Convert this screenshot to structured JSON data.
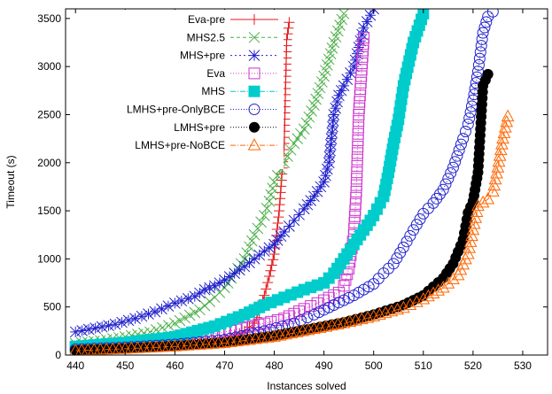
{
  "chart_data": {
    "type": "line",
    "title": "",
    "xlabel": "Instances solved",
    "ylabel": "Timeout (s)",
    "xlim": [
      438,
      535
    ],
    "ylim": [
      0,
      3600
    ],
    "xticks": [
      440,
      450,
      460,
      470,
      480,
      490,
      500,
      510,
      520,
      530
    ],
    "yticks": [
      0,
      500,
      1000,
      1500,
      2000,
      2500,
      3000,
      3500
    ],
    "legend_position": "top-left",
    "grid": false,
    "series": [
      {
        "name": "Eva-pre",
        "color": "#e41a1c",
        "marker": "plus",
        "dash": "",
        "points": [
          [
            440,
            40
          ],
          [
            444,
            55
          ],
          [
            448,
            70
          ],
          [
            452,
            80
          ],
          [
            456,
            95
          ],
          [
            460,
            110
          ],
          [
            464,
            130
          ],
          [
            468,
            150
          ],
          [
            470,
            170
          ],
          [
            472,
            200
          ],
          [
            474,
            250
          ],
          [
            476,
            330
          ],
          [
            477,
            450
          ],
          [
            478,
            620
          ],
          [
            479,
            820
          ],
          [
            480,
            1050
          ],
          [
            481,
            1500
          ],
          [
            482,
            2200
          ],
          [
            482.5,
            3280
          ],
          [
            483,
            3460
          ]
        ]
      },
      {
        "name": "MHS2.5",
        "color": "#4daf4a",
        "marker": "x",
        "dash": "4,3",
        "points": [
          [
            440,
            120
          ],
          [
            445,
            150
          ],
          [
            450,
            190
          ],
          [
            455,
            240
          ],
          [
            460,
            330
          ],
          [
            465,
            470
          ],
          [
            468,
            600
          ],
          [
            470,
            700
          ],
          [
            472,
            850
          ],
          [
            474,
            1000
          ],
          [
            476,
            1250
          ],
          [
            478,
            1450
          ],
          [
            479,
            1600
          ],
          [
            480,
            1800
          ],
          [
            482,
            2000
          ],
          [
            484,
            2200
          ],
          [
            486,
            2350
          ],
          [
            488,
            2600
          ],
          [
            490,
            2900
          ],
          [
            492,
            3250
          ],
          [
            494,
            3550
          ]
        ]
      },
      {
        "name": "MHS+pre",
        "color": "#2222cc",
        "marker": "star",
        "dash": "2,3",
        "points": [
          [
            440,
            240
          ],
          [
            444,
            280
          ],
          [
            448,
            320
          ],
          [
            452,
            380
          ],
          [
            456,
            450
          ],
          [
            460,
            540
          ],
          [
            464,
            610
          ],
          [
            466,
            680
          ],
          [
            468,
            720
          ],
          [
            470,
            780
          ],
          [
            472,
            850
          ],
          [
            474,
            920
          ],
          [
            476,
            1000
          ],
          [
            478,
            1080
          ],
          [
            480,
            1150
          ],
          [
            482,
            1280
          ],
          [
            484,
            1400
          ],
          [
            486,
            1520
          ],
          [
            488,
            1650
          ],
          [
            490,
            1800
          ],
          [
            491,
            2000
          ],
          [
            492,
            2500
          ],
          [
            493,
            2700
          ],
          [
            494,
            2800
          ],
          [
            496,
            3000
          ],
          [
            497,
            3200
          ],
          [
            498,
            3400
          ],
          [
            500,
            3600
          ]
        ]
      },
      {
        "name": "Eva",
        "color": "#cc33cc",
        "marker": "square-open",
        "dash": "1,2",
        "points": [
          [
            440,
            80
          ],
          [
            450,
            110
          ],
          [
            460,
            160
          ],
          [
            470,
            240
          ],
          [
            478,
            330
          ],
          [
            482,
            380
          ],
          [
            486,
            480
          ],
          [
            490,
            570
          ],
          [
            493,
            650
          ],
          [
            494,
            720
          ],
          [
            495,
            900
          ],
          [
            496,
            1250
          ],
          [
            496.5,
            1700
          ],
          [
            497,
            2500
          ],
          [
            498,
            3300
          ]
        ]
      },
      {
        "name": "MHS",
        "color": "#00cccc",
        "marker": "square-filled",
        "dash": "6,2,1,2",
        "points": [
          [
            440,
            90
          ],
          [
            450,
            130
          ],
          [
            460,
            190
          ],
          [
            468,
            300
          ],
          [
            474,
            420
          ],
          [
            478,
            520
          ],
          [
            482,
            600
          ],
          [
            486,
            680
          ],
          [
            490,
            750
          ],
          [
            492,
            850
          ],
          [
            494,
            1000
          ],
          [
            496,
            1150
          ],
          [
            498,
            1300
          ],
          [
            500,
            1450
          ],
          [
            502,
            1650
          ],
          [
            503,
            1900
          ],
          [
            504,
            2200
          ],
          [
            505,
            2450
          ],
          [
            506,
            2800
          ],
          [
            508,
            3250
          ],
          [
            510,
            3550
          ]
        ]
      },
      {
        "name": "LMHS+pre-OnlyBCE",
        "color": "#2222cc",
        "marker": "circle-open",
        "dash": "1,2",
        "points": [
          [
            440,
            60
          ],
          [
            450,
            80
          ],
          [
            460,
            110
          ],
          [
            470,
            160
          ],
          [
            478,
            250
          ],
          [
            484,
            330
          ],
          [
            488,
            420
          ],
          [
            492,
            520
          ],
          [
            496,
            620
          ],
          [
            500,
            740
          ],
          [
            502,
            850
          ],
          [
            504,
            950
          ],
          [
            506,
            1120
          ],
          [
            508,
            1300
          ],
          [
            510,
            1470
          ],
          [
            512,
            1580
          ],
          [
            514,
            1720
          ],
          [
            516,
            1950
          ],
          [
            518,
            2250
          ],
          [
            519,
            2400
          ],
          [
            520,
            2650
          ],
          [
            521,
            2950
          ],
          [
            522,
            3350
          ],
          [
            523,
            3520
          ],
          [
            524,
            3570
          ]
        ]
      },
      {
        "name": "LMHS+pre",
        "color": "#000000",
        "marker": "circle-filled",
        "dash": "1,2",
        "points": [
          [
            440,
            50
          ],
          [
            450,
            70
          ],
          [
            460,
            95
          ],
          [
            470,
            130
          ],
          [
            480,
            200
          ],
          [
            488,
            280
          ],
          [
            494,
            340
          ],
          [
            500,
            420
          ],
          [
            506,
            520
          ],
          [
            510,
            620
          ],
          [
            514,
            800
          ],
          [
            516,
            950
          ],
          [
            518,
            1200
          ],
          [
            519,
            1480
          ],
          [
            520,
            1600
          ],
          [
            521,
            1900
          ],
          [
            522,
            2800
          ],
          [
            523,
            2920
          ]
        ]
      },
      {
        "name": "LMHS+pre-NoBCE",
        "color": "#ff6600",
        "marker": "triangle-open",
        "dash": "6,2,1,2",
        "points": [
          [
            440,
            45
          ],
          [
            450,
            65
          ],
          [
            460,
            90
          ],
          [
            470,
            125
          ],
          [
            480,
            190
          ],
          [
            488,
            270
          ],
          [
            494,
            330
          ],
          [
            500,
            400
          ],
          [
            506,
            490
          ],
          [
            510,
            580
          ],
          [
            514,
            700
          ],
          [
            517,
            830
          ],
          [
            519,
            1050
          ],
          [
            520,
            1300
          ],
          [
            521,
            1550
          ],
          [
            523,
            1620
          ],
          [
            524,
            1700
          ],
          [
            525,
            1950
          ],
          [
            526,
            2250
          ],
          [
            527,
            2480
          ]
        ]
      }
    ]
  }
}
